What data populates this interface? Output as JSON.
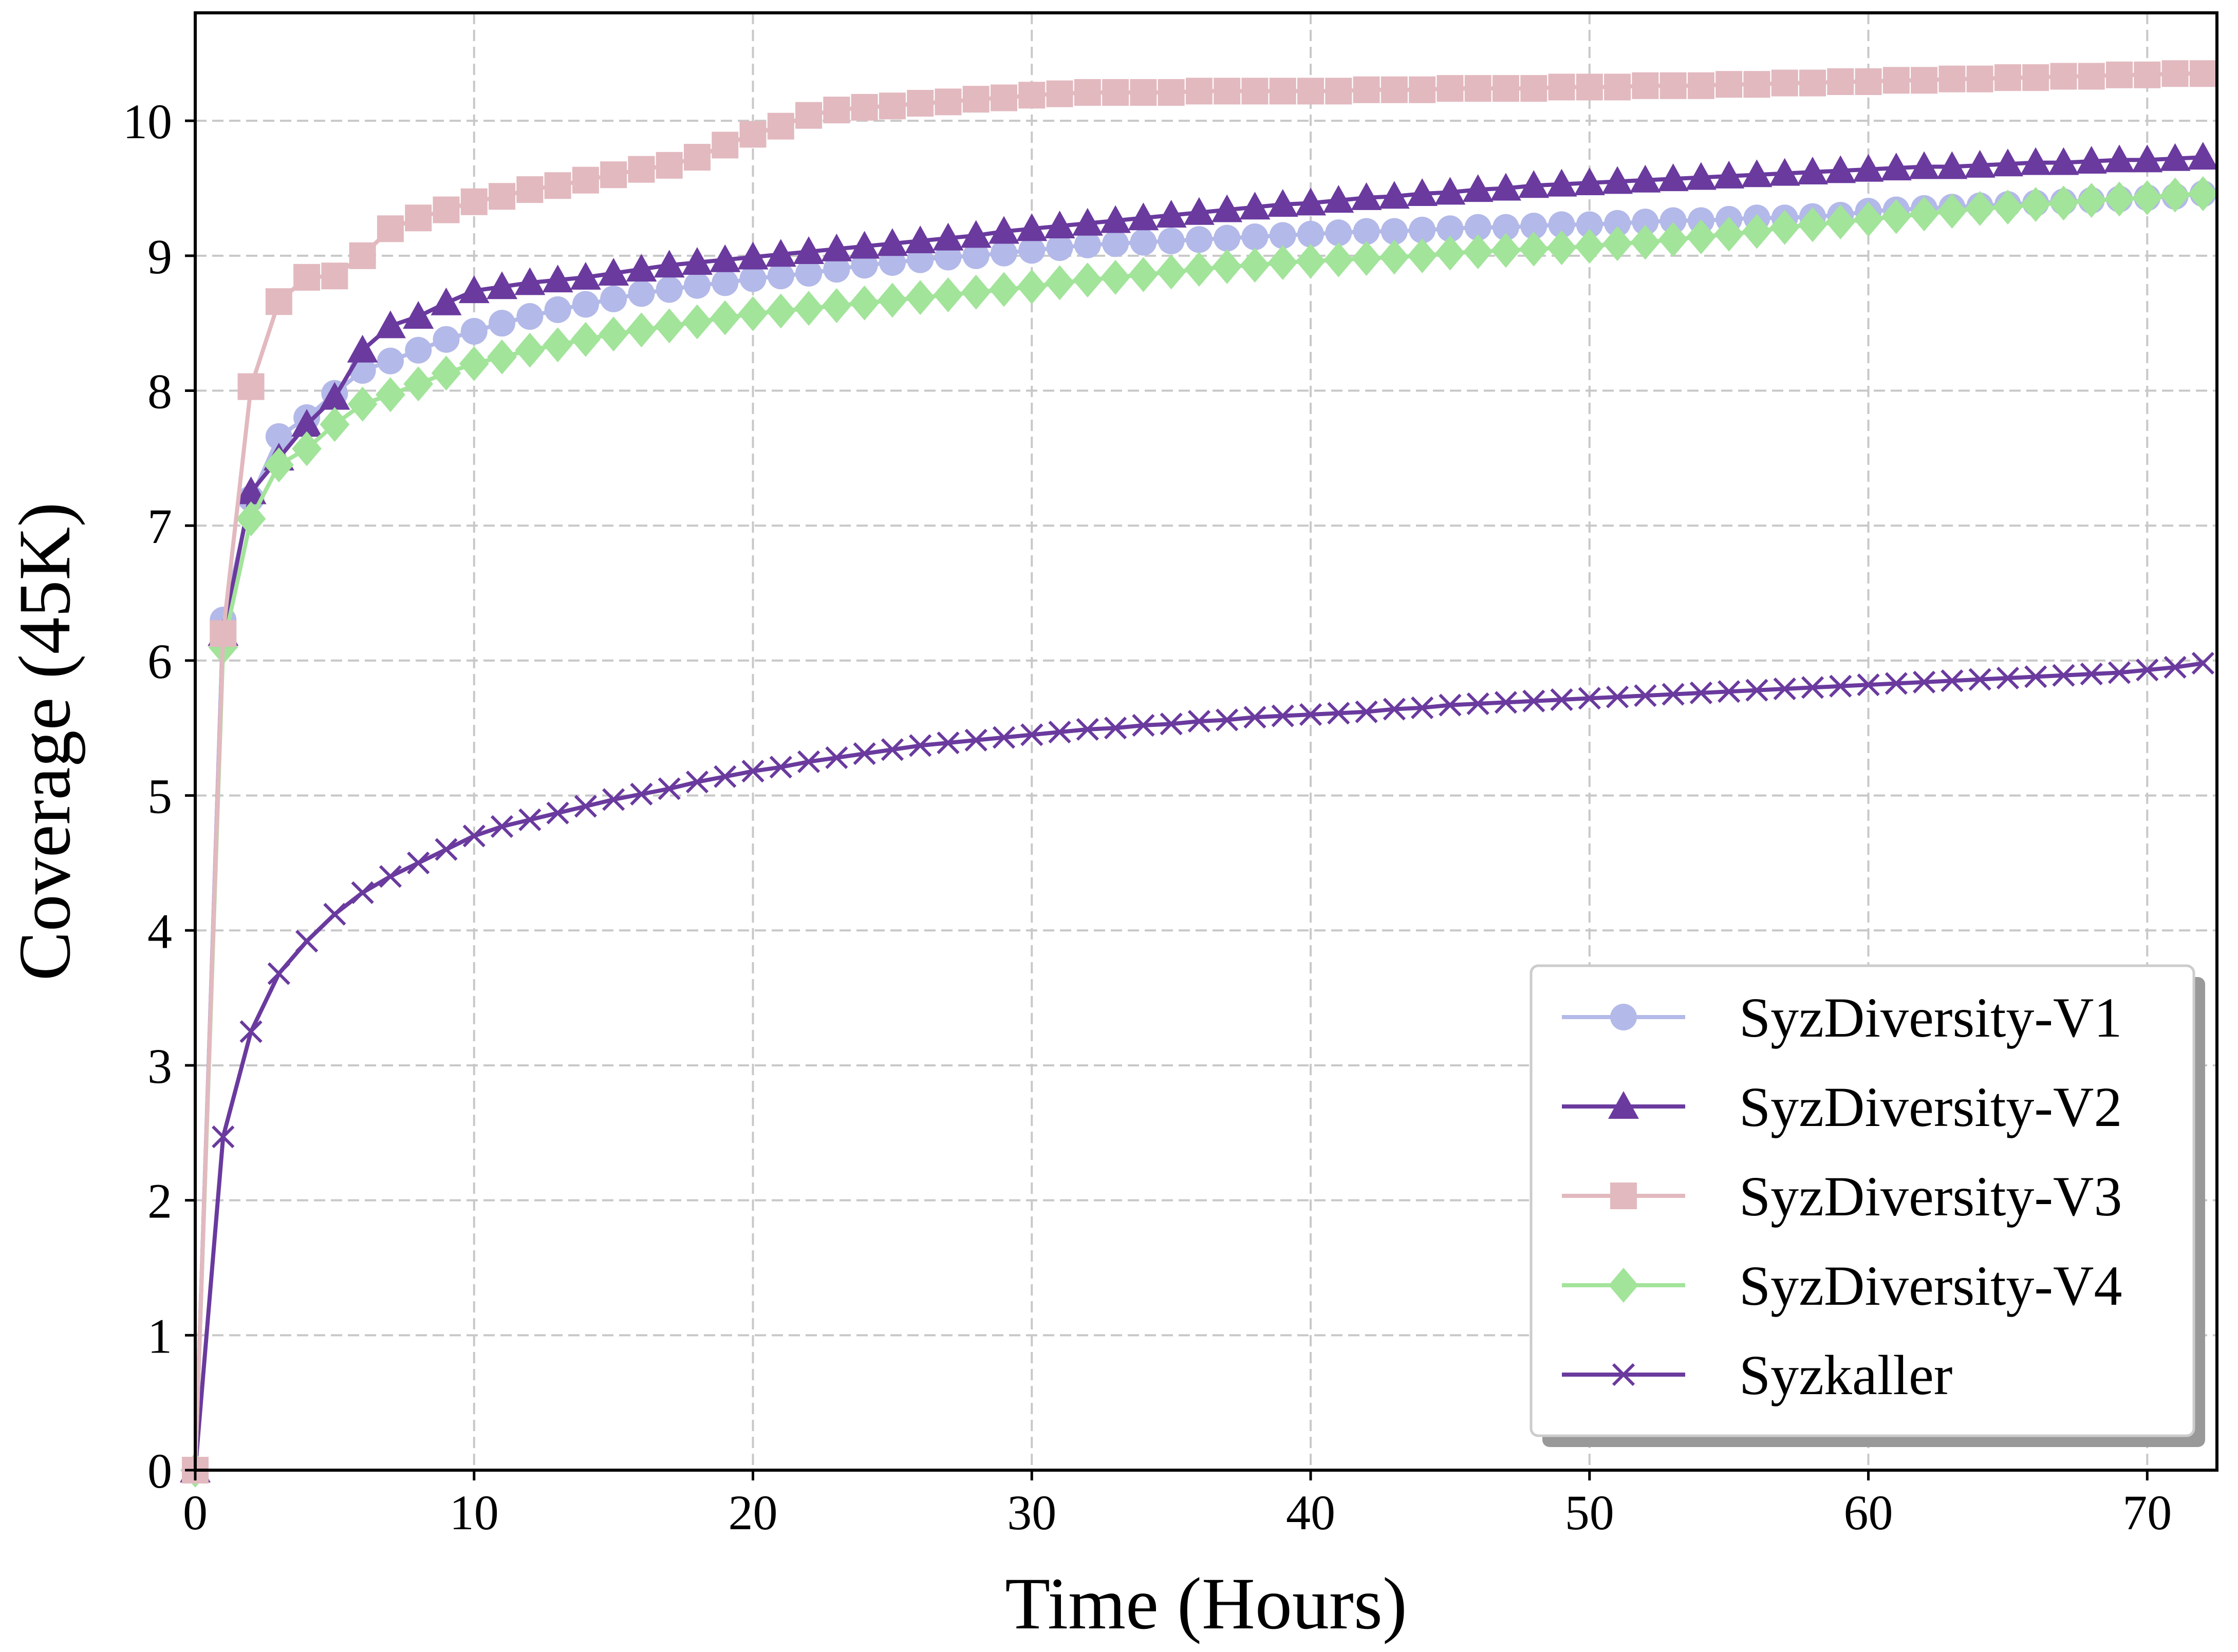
{
  "chart_data": {
    "type": "line",
    "xlabel": "Time (Hours)",
    "ylabel": "Coverage (45K)",
    "xlim": [
      0,
      72.5
    ],
    "ylim": [
      0,
      10.8
    ],
    "x_ticks": [
      "0",
      "10",
      "20",
      "30",
      "40",
      "50",
      "60",
      "70"
    ],
    "y_ticks": [
      "0",
      "1",
      "2",
      "3",
      "4",
      "5",
      "6",
      "7",
      "8",
      "9",
      "10"
    ],
    "grid": true,
    "legend_position": "lower-right",
    "x": [
      0,
      1,
      2,
      3,
      4,
      5,
      6,
      7,
      8,
      9,
      10,
      11,
      12,
      13,
      14,
      15,
      16,
      17,
      18,
      19,
      20,
      21,
      22,
      23,
      24,
      25,
      26,
      27,
      28,
      29,
      30,
      31,
      32,
      33,
      34,
      35,
      36,
      37,
      38,
      39,
      40,
      41,
      42,
      43,
      44,
      45,
      46,
      47,
      48,
      49,
      50,
      51,
      52,
      53,
      54,
      55,
      56,
      57,
      58,
      59,
      60,
      61,
      62,
      63,
      64,
      65,
      66,
      67,
      68,
      69,
      70,
      71,
      72
    ],
    "series": [
      {
        "name": "SyzDiversity-V1",
        "color": "#b3b9e8",
        "marker": "circle",
        "values": [
          0,
          6.3,
          7.2,
          7.66,
          7.8,
          7.98,
          8.15,
          8.22,
          8.3,
          8.38,
          8.44,
          8.5,
          8.55,
          8.6,
          8.64,
          8.68,
          8.72,
          8.75,
          8.78,
          8.8,
          8.83,
          8.85,
          8.87,
          8.9,
          8.93,
          8.95,
          8.97,
          8.99,
          9.0,
          9.02,
          9.04,
          9.06,
          9.08,
          9.09,
          9.1,
          9.11,
          9.12,
          9.13,
          9.14,
          9.15,
          9.16,
          9.17,
          9.18,
          9.18,
          9.19,
          9.2,
          9.21,
          9.21,
          9.22,
          9.23,
          9.23,
          9.24,
          9.25,
          9.26,
          9.26,
          9.27,
          9.28,
          9.28,
          9.29,
          9.3,
          9.33,
          9.34,
          9.35,
          9.36,
          9.37,
          9.38,
          9.39,
          9.4,
          9.41,
          9.42,
          9.43,
          9.44,
          9.46
        ]
      },
      {
        "name": "SyzDiversity-V2",
        "color": "#6a3a9e",
        "marker": "triangle",
        "values": [
          0,
          6.2,
          7.25,
          7.5,
          7.75,
          7.95,
          8.3,
          8.48,
          8.55,
          8.65,
          8.74,
          8.77,
          8.8,
          8.82,
          8.84,
          8.87,
          8.9,
          8.93,
          8.95,
          8.97,
          8.99,
          9.01,
          9.03,
          9.05,
          9.07,
          9.09,
          9.11,
          9.13,
          9.15,
          9.18,
          9.2,
          9.22,
          9.24,
          9.26,
          9.28,
          9.3,
          9.32,
          9.34,
          9.36,
          9.38,
          9.39,
          9.41,
          9.43,
          9.44,
          9.46,
          9.47,
          9.49,
          9.5,
          9.52,
          9.53,
          9.54,
          9.55,
          9.56,
          9.57,
          9.58,
          9.59,
          9.6,
          9.61,
          9.62,
          9.63,
          9.64,
          9.65,
          9.66,
          9.66,
          9.67,
          9.68,
          9.69,
          9.69,
          9.7,
          9.71,
          9.71,
          9.72,
          9.73
        ]
      },
      {
        "name": "SyzDiversity-V3",
        "color": "#e2b9bf",
        "marker": "square",
        "values": [
          0,
          6.2,
          8.03,
          8.66,
          8.84,
          8.85,
          9.0,
          9.2,
          9.28,
          9.34,
          9.4,
          9.44,
          9.49,
          9.52,
          9.56,
          9.6,
          9.64,
          9.67,
          9.73,
          9.82,
          9.9,
          9.96,
          10.04,
          10.08,
          10.1,
          10.11,
          10.13,
          10.14,
          10.16,
          10.17,
          10.19,
          10.2,
          10.21,
          10.21,
          10.21,
          10.21,
          10.22,
          10.22,
          10.22,
          10.22,
          10.22,
          10.22,
          10.23,
          10.23,
          10.23,
          10.24,
          10.24,
          10.24,
          10.24,
          10.25,
          10.25,
          10.25,
          10.26,
          10.26,
          10.26,
          10.27,
          10.27,
          10.28,
          10.28,
          10.29,
          10.29,
          10.3,
          10.3,
          10.31,
          10.31,
          10.32,
          10.32,
          10.33,
          10.33,
          10.34,
          10.34,
          10.35,
          10.35
        ]
      },
      {
        "name": "SyzDiversity-V4",
        "color": "#a2e49a",
        "marker": "diamond",
        "values": [
          0,
          6.1,
          7.05,
          7.45,
          7.57,
          7.75,
          7.9,
          7.97,
          8.05,
          8.13,
          8.2,
          8.25,
          8.3,
          8.34,
          8.38,
          8.42,
          8.45,
          8.48,
          8.51,
          8.54,
          8.57,
          8.59,
          8.61,
          8.63,
          8.65,
          8.67,
          8.69,
          8.71,
          8.73,
          8.75,
          8.77,
          8.8,
          8.82,
          8.84,
          8.86,
          8.88,
          8.9,
          8.92,
          8.93,
          8.95,
          8.96,
          8.97,
          8.98,
          8.99,
          9.0,
          9.02,
          9.03,
          9.04,
          9.05,
          9.06,
          9.07,
          9.09,
          9.1,
          9.12,
          9.14,
          9.16,
          9.18,
          9.21,
          9.23,
          9.25,
          9.27,
          9.29,
          9.31,
          9.33,
          9.35,
          9.36,
          9.38,
          9.39,
          9.41,
          9.42,
          9.43,
          9.45,
          9.46
        ]
      },
      {
        "name": "Syzkaller",
        "color": "#6a3a9e",
        "marker": "x",
        "values": [
          0,
          2.47,
          3.25,
          3.68,
          3.92,
          4.12,
          4.28,
          4.4,
          4.5,
          4.6,
          4.7,
          4.77,
          4.82,
          4.87,
          4.92,
          4.97,
          5.01,
          5.05,
          5.1,
          5.14,
          5.18,
          5.21,
          5.25,
          5.28,
          5.31,
          5.34,
          5.37,
          5.39,
          5.41,
          5.43,
          5.45,
          5.47,
          5.49,
          5.5,
          5.52,
          5.53,
          5.55,
          5.56,
          5.58,
          5.59,
          5.6,
          5.61,
          5.62,
          5.64,
          5.65,
          5.67,
          5.68,
          5.69,
          5.7,
          5.71,
          5.72,
          5.73,
          5.74,
          5.75,
          5.76,
          5.77,
          5.78,
          5.79,
          5.8,
          5.81,
          5.82,
          5.83,
          5.84,
          5.85,
          5.86,
          5.87,
          5.88,
          5.89,
          5.9,
          5.91,
          5.93,
          5.95,
          5.98
        ]
      }
    ]
  }
}
